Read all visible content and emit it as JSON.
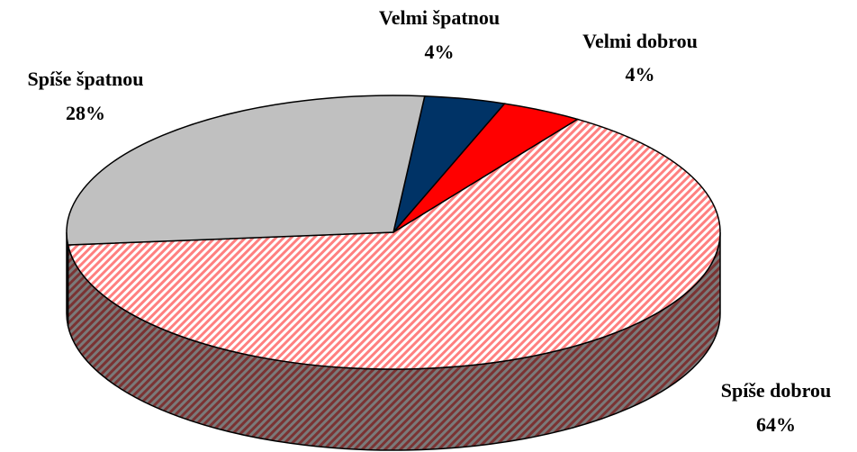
{
  "chart_data": {
    "type": "pie3d",
    "categories": [
      "Velmi špatnou",
      "Velmi dobrou",
      "Spíše dobrou",
      "Spíše špatnou"
    ],
    "values": [
      4,
      4,
      64,
      28
    ],
    "value_labels": [
      "4%",
      "4%",
      "64%",
      "28%"
    ],
    "colors": [
      "#003366",
      "#ff0000",
      "#ff9999",
      "#c0c0c0"
    ],
    "hatch": [
      false,
      false,
      true,
      false
    ]
  }
}
